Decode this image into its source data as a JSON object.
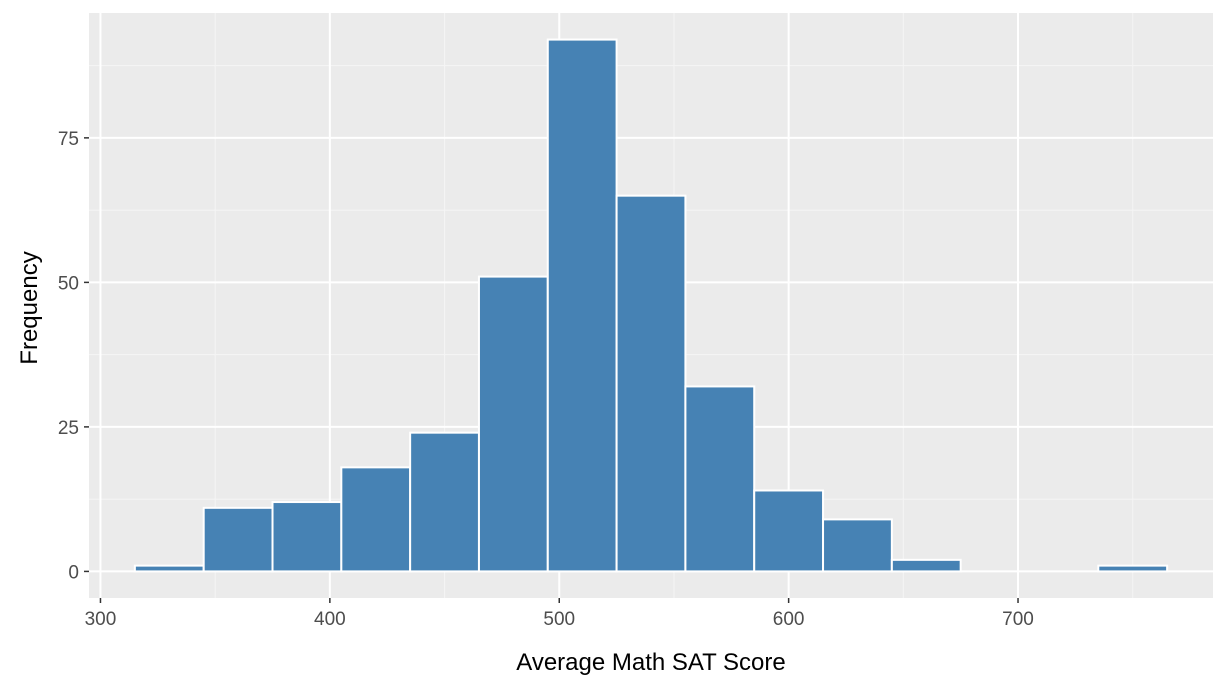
{
  "chart_data": {
    "type": "bar",
    "subtype": "histogram",
    "title": "",
    "xlabel": "Average Math SAT Score",
    "ylabel": "Frequency",
    "bin_width": 30,
    "bins": [
      {
        "x0": 315,
        "x1": 345,
        "count": 1
      },
      {
        "x0": 345,
        "x1": 375,
        "count": 11
      },
      {
        "x0": 375,
        "x1": 405,
        "count": 12
      },
      {
        "x0": 405,
        "x1": 435,
        "count": 18
      },
      {
        "x0": 435,
        "x1": 465,
        "count": 24
      },
      {
        "x0": 465,
        "x1": 495,
        "count": 51
      },
      {
        "x0": 495,
        "x1": 525,
        "count": 92
      },
      {
        "x0": 525,
        "x1": 555,
        "count": 65
      },
      {
        "x0": 555,
        "x1": 585,
        "count": 32
      },
      {
        "x0": 585,
        "x1": 615,
        "count": 14
      },
      {
        "x0": 615,
        "x1": 645,
        "count": 9
      },
      {
        "x0": 645,
        "x1": 675,
        "count": 2
      },
      {
        "x0": 675,
        "x1": 705,
        "count": 0
      },
      {
        "x0": 705,
        "x1": 735,
        "count": 0
      },
      {
        "x0": 735,
        "x1": 765,
        "count": 1
      }
    ],
    "xlim": [
      295,
      785
    ],
    "ylim": [
      -4.6,
      96.6
    ],
    "x_ticks": [
      300,
      400,
      500,
      600,
      700
    ],
    "y_ticks": [
      0,
      25,
      50,
      75
    ],
    "x_tick_labels": [
      "300",
      "400",
      "500",
      "600",
      "700"
    ],
    "y_tick_labels": [
      "0",
      "25",
      "50",
      "75"
    ],
    "grid": true,
    "legend": "none",
    "colors": {
      "bar_fill": "#4682b4",
      "bar_outline": "#ffffff",
      "panel_background": "#ebebeb",
      "grid_major": "#ffffff",
      "grid_minor": "#f5f5f5"
    }
  }
}
